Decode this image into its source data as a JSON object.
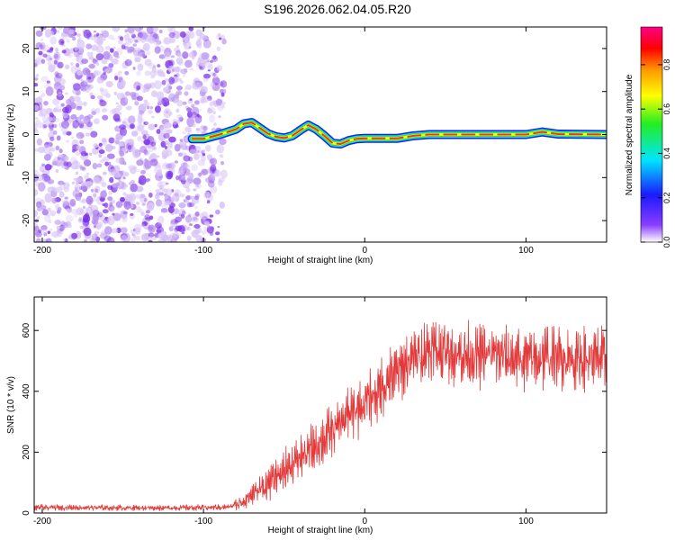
{
  "title": "S196.2026.062.04.05.R20",
  "colors": {
    "snr_line": "#e23a3a",
    "noise_light": "#d9c6f7",
    "noise_mid": "#b48cf0",
    "noise_dark": "#7a2ee8",
    "colormap": [
      "#ffffff",
      "#7e3dff",
      "#1a1aff",
      "#00e5ff",
      "#22ee22",
      "#ffff00",
      "#ff9900",
      "#ff0000",
      "#ff0088"
    ]
  },
  "chart_data": [
    {
      "type": "heatmap",
      "name": "spectrogram",
      "title": "",
      "xlabel": "Height of straight line (km)",
      "ylabel": "Frequency (Hz)",
      "xlim": [
        -205,
        150
      ],
      "ylim": [
        -25,
        25
      ],
      "xticks": [
        -200,
        -100,
        0,
        100
      ],
      "yticks": [
        -20,
        -10,
        0,
        10,
        20
      ],
      "noise_region": {
        "x_from": -205,
        "x_to": -87,
        "y_from": -25,
        "y_to": 25
      },
      "ridge": {
        "x": [
          -107,
          -100,
          -90,
          -80,
          -75,
          -70,
          -65,
          -60,
          -55,
          -50,
          -45,
          -40,
          -35,
          -30,
          -25,
          -20,
          -15,
          -10,
          -5,
          0,
          10,
          20,
          30,
          40,
          60,
          80,
          100,
          110,
          120,
          150
        ],
        "y": [
          -1,
          -1,
          0,
          1.2,
          2.5,
          2.8,
          1.5,
          0.2,
          -0.5,
          -0.8,
          -0.3,
          1.0,
          2.2,
          1.2,
          -0.3,
          -2.0,
          -2.2,
          -1.4,
          -1.0,
          -0.9,
          -0.9,
          -0.9,
          -0.3,
          0.0,
          0.0,
          0.0,
          0.0,
          0.6,
          0.1,
          0.0
        ]
      },
      "colorbar": {
        "label": "Normalized spectral amplitude",
        "ticks": [
          0.0,
          0.2,
          0.4,
          0.6,
          0.8
        ],
        "tick_labels": [
          "0.0",
          "0.2",
          "0.4",
          "0.6",
          "0.8"
        ],
        "range": [
          0,
          0.97
        ]
      }
    },
    {
      "type": "line",
      "name": "snr",
      "title": "",
      "xlabel": "Height of straight line (km)",
      "ylabel": "SNR (10 * v/v)",
      "xlim": [
        -205,
        150
      ],
      "ylim": [
        0,
        710
      ],
      "xticks": [
        -200,
        -100,
        0,
        100
      ],
      "yticks": [
        0,
        200,
        400,
        600
      ],
      "series": [
        {
          "name": "SNR",
          "x": [
            -205,
            -180,
            -150,
            -120,
            -100,
            -85,
            -78,
            -70,
            -60,
            -50,
            -40,
            -30,
            -20,
            -10,
            0,
            10,
            20,
            30,
            40,
            50,
            60,
            70,
            80,
            90,
            100,
            110,
            120,
            130,
            140,
            150
          ],
          "mean": [
            18,
            18,
            17,
            17,
            18,
            19,
            30,
            60,
            95,
            140,
            180,
            220,
            270,
            320,
            360,
            410,
            460,
            510,
            540,
            530,
            520,
            515,
            520,
            510,
            505,
            510,
            515,
            505,
            510,
            505
          ],
          "amp": [
            8,
            8,
            8,
            8,
            8,
            8,
            20,
            35,
            45,
            55,
            60,
            65,
            70,
            75,
            80,
            80,
            80,
            75,
            80,
            85,
            85,
            85,
            85,
            85,
            85,
            85,
            85,
            85,
            85,
            85
          ]
        }
      ]
    }
  ]
}
